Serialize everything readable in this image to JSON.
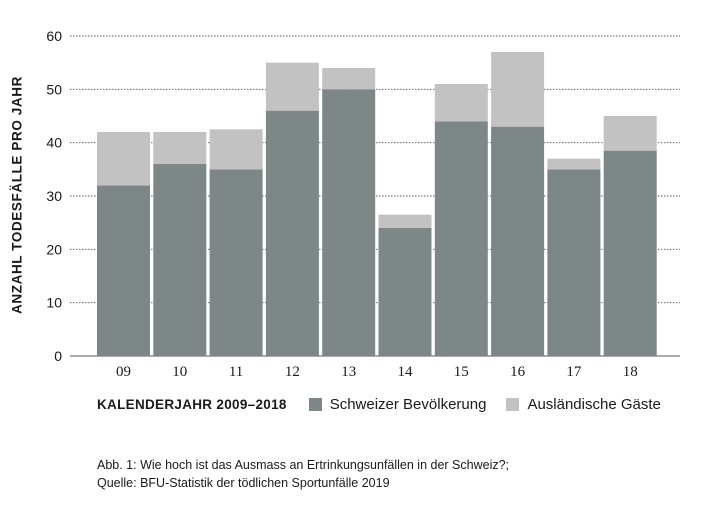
{
  "chart_data": {
    "type": "bar",
    "stacked": true,
    "categories": [
      "09",
      "10",
      "11",
      "12",
      "13",
      "14",
      "15",
      "16",
      "17",
      "18"
    ],
    "series": [
      {
        "name": "Schweizer Bevölkerung",
        "color": "#7d8787",
        "values": [
          32,
          36,
          35,
          46,
          50,
          24,
          44,
          43,
          35,
          38.5
        ]
      },
      {
        "name": "Ausländische Gäste",
        "color": "#c2c2c2",
        "values": [
          10,
          6,
          7.5,
          9,
          4,
          2.5,
          7,
          14,
          2,
          6.5
        ]
      }
    ],
    "xlabel": "KALENDERJAHR 2009–2018",
    "ylabel": "ANZAHL TODESFÄLLE PRO JAHR",
    "ylim": [
      0,
      60
    ],
    "yticks": [
      0,
      10,
      20,
      30,
      40,
      50,
      60
    ],
    "grid": true,
    "legend_position": "bottom"
  },
  "caption": {
    "line1": "Abb. 1: Wie hoch ist das Ausmass an Ertrinkungsunfällen in der Schweiz?;",
    "line2": "Quelle: BFU-Statistik der tödlichen Sportunfälle 2019"
  }
}
